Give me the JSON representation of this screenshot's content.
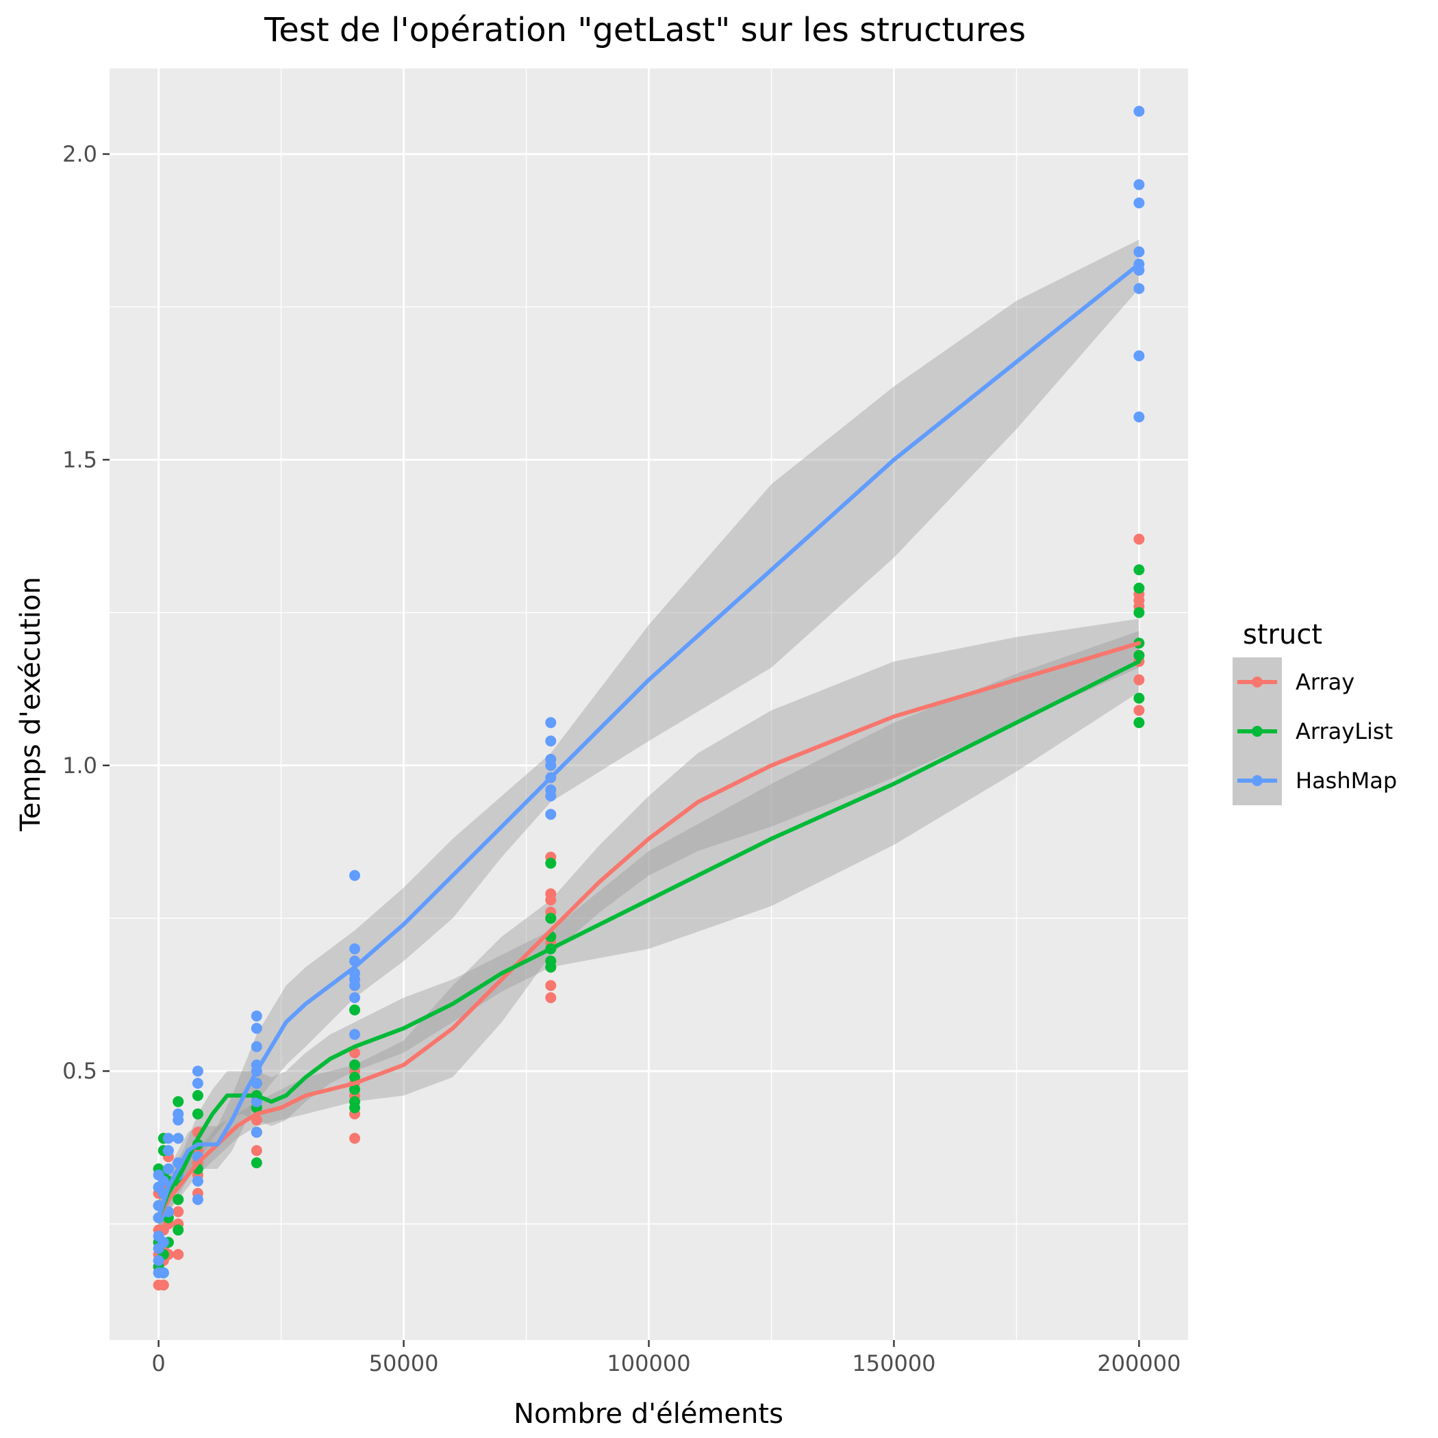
{
  "chart_data": {
    "type": "scatter",
    "title": "Test de l'opération \"getLast\" sur les structures",
    "xlabel": "Nombre d'éléments",
    "ylabel": "Temps d'exécution",
    "xlim": [
      -10000,
      210000
    ],
    "ylim": [
      0.06,
      2.14
    ],
    "x_ticks": [
      0,
      50000,
      100000,
      150000,
      200000
    ],
    "x_tick_labels": [
      "0",
      "50000",
      "100000",
      "150000",
      "200000"
    ],
    "y_ticks": [
      0.5,
      1.0,
      1.5,
      2.0
    ],
    "y_tick_labels": [
      "0.5",
      "1.0",
      "1.5",
      "2.0"
    ],
    "grid": true,
    "legend": {
      "title": "struct",
      "position": "right"
    },
    "series": [
      {
        "name": "Array",
        "color": "#F8766D",
        "points": [
          [
            0,
            0.15
          ],
          [
            0,
            0.18
          ],
          [
            0,
            0.2
          ],
          [
            0,
            0.24
          ],
          [
            0,
            0.26
          ],
          [
            0,
            0.28
          ],
          [
            0,
            0.3
          ],
          [
            1000,
            0.15
          ],
          [
            1000,
            0.19
          ],
          [
            1000,
            0.21
          ],
          [
            1000,
            0.24
          ],
          [
            1000,
            0.27
          ],
          [
            1000,
            0.31
          ],
          [
            2000,
            0.2
          ],
          [
            2000,
            0.25
          ],
          [
            2000,
            0.3
          ],
          [
            2000,
            0.36
          ],
          [
            4000,
            0.2
          ],
          [
            4000,
            0.25
          ],
          [
            4000,
            0.27
          ],
          [
            4000,
            0.29
          ],
          [
            8000,
            0.3
          ],
          [
            8000,
            0.33
          ],
          [
            8000,
            0.35
          ],
          [
            8000,
            0.37
          ],
          [
            8000,
            0.4
          ],
          [
            20000,
            0.37
          ],
          [
            20000,
            0.4
          ],
          [
            20000,
            0.42
          ],
          [
            20000,
            0.44
          ],
          [
            40000,
            0.39
          ],
          [
            40000,
            0.43
          ],
          [
            40000,
            0.46
          ],
          [
            40000,
            0.48
          ],
          [
            40000,
            0.5
          ],
          [
            40000,
            0.51
          ],
          [
            40000,
            0.53
          ],
          [
            80000,
            0.62
          ],
          [
            80000,
            0.64
          ],
          [
            80000,
            0.67
          ],
          [
            80000,
            0.71
          ],
          [
            80000,
            0.75
          ],
          [
            80000,
            0.76
          ],
          [
            80000,
            0.78
          ],
          [
            80000,
            0.79
          ],
          [
            80000,
            0.85
          ],
          [
            200000,
            1.09
          ],
          [
            200000,
            1.14
          ],
          [
            200000,
            1.17
          ],
          [
            200000,
            1.18
          ],
          [
            200000,
            1.26
          ],
          [
            200000,
            1.27
          ],
          [
            200000,
            1.28
          ],
          [
            200000,
            1.37
          ]
        ],
        "smooth": {
          "x": [
            0,
            2000,
            5000,
            8000,
            12000,
            16000,
            20000,
            25000,
            30000,
            35000,
            40000,
            50000,
            60000,
            70000,
            80000,
            90000,
            100000,
            110000,
            125000,
            150000,
            175000,
            200000
          ],
          "y": [
            0.26,
            0.29,
            0.32,
            0.35,
            0.38,
            0.41,
            0.43,
            0.44,
            0.46,
            0.47,
            0.48,
            0.51,
            0.57,
            0.65,
            0.73,
            0.81,
            0.88,
            0.94,
            1.0,
            1.08,
            1.14,
            1.2
          ],
          "lower": [
            0.23,
            0.27,
            0.3,
            0.33,
            0.36,
            0.39,
            0.41,
            0.42,
            0.43,
            0.44,
            0.45,
            0.46,
            0.49,
            0.58,
            0.69,
            0.76,
            0.82,
            0.86,
            0.9,
            0.98,
            1.07,
            1.16
          ],
          "upper": [
            0.29,
            0.32,
            0.35,
            0.37,
            0.41,
            0.43,
            0.45,
            0.47,
            0.49,
            0.5,
            0.51,
            0.55,
            0.64,
            0.72,
            0.78,
            0.87,
            0.95,
            1.02,
            1.09,
            1.17,
            1.21,
            1.24
          ]
        }
      },
      {
        "name": "ArrayList",
        "color": "#00BA38",
        "points": [
          [
            0,
            0.18
          ],
          [
            0,
            0.22
          ],
          [
            0,
            0.26
          ],
          [
            0,
            0.28
          ],
          [
            0,
            0.31
          ],
          [
            0,
            0.34
          ],
          [
            1000,
            0.17
          ],
          [
            1000,
            0.2
          ],
          [
            1000,
            0.3
          ],
          [
            1000,
            0.33
          ],
          [
            1000,
            0.37
          ],
          [
            1000,
            0.39
          ],
          [
            2000,
            0.22
          ],
          [
            2000,
            0.26
          ],
          [
            2000,
            0.32
          ],
          [
            4000,
            0.24
          ],
          [
            4000,
            0.29
          ],
          [
            4000,
            0.32
          ],
          [
            4000,
            0.45
          ],
          [
            8000,
            0.34
          ],
          [
            8000,
            0.38
          ],
          [
            8000,
            0.43
          ],
          [
            8000,
            0.46
          ],
          [
            20000,
            0.35
          ],
          [
            20000,
            0.4
          ],
          [
            20000,
            0.44
          ],
          [
            20000,
            0.46
          ],
          [
            20000,
            0.48
          ],
          [
            40000,
            0.44
          ],
          [
            40000,
            0.45
          ],
          [
            40000,
            0.47
          ],
          [
            40000,
            0.49
          ],
          [
            40000,
            0.51
          ],
          [
            40000,
            0.6
          ],
          [
            80000,
            0.67
          ],
          [
            80000,
            0.68
          ],
          [
            80000,
            0.7
          ],
          [
            80000,
            0.72
          ],
          [
            80000,
            0.75
          ],
          [
            80000,
            0.84
          ],
          [
            200000,
            1.07
          ],
          [
            200000,
            1.11
          ],
          [
            200000,
            1.18
          ],
          [
            200000,
            1.2
          ],
          [
            200000,
            1.25
          ],
          [
            200000,
            1.29
          ],
          [
            200000,
            1.32
          ]
        ],
        "smooth": {
          "x": [
            0,
            2000,
            5000,
            8000,
            11000,
            14000,
            17000,
            20000,
            23000,
            26000,
            30000,
            35000,
            40000,
            50000,
            60000,
            70000,
            80000,
            100000,
            125000,
            150000,
            175000,
            200000
          ],
          "y": [
            0.26,
            0.3,
            0.34,
            0.39,
            0.43,
            0.46,
            0.46,
            0.46,
            0.45,
            0.46,
            0.49,
            0.52,
            0.54,
            0.57,
            0.61,
            0.66,
            0.7,
            0.78,
            0.88,
            0.97,
            1.07,
            1.17
          ],
          "lower": [
            0.22,
            0.27,
            0.31,
            0.35,
            0.39,
            0.42,
            0.43,
            0.42,
            0.41,
            0.42,
            0.45,
            0.48,
            0.5,
            0.53,
            0.58,
            0.63,
            0.67,
            0.7,
            0.77,
            0.87,
            0.99,
            1.12
          ],
          "upper": [
            0.29,
            0.33,
            0.37,
            0.43,
            0.47,
            0.5,
            0.5,
            0.5,
            0.49,
            0.5,
            0.53,
            0.56,
            0.58,
            0.62,
            0.65,
            0.69,
            0.73,
            0.86,
            0.97,
            1.07,
            1.15,
            1.22
          ]
        }
      },
      {
        "name": "HashMap",
        "color": "#619CFF",
        "points": [
          [
            0,
            0.17
          ],
          [
            0,
            0.19
          ],
          [
            0,
            0.21
          ],
          [
            0,
            0.23
          ],
          [
            0,
            0.26
          ],
          [
            0,
            0.28
          ],
          [
            0,
            0.31
          ],
          [
            0,
            0.33
          ],
          [
            1000,
            0.17
          ],
          [
            1000,
            0.22
          ],
          [
            1000,
            0.27
          ],
          [
            1000,
            0.3
          ],
          [
            1000,
            0.32
          ],
          [
            2000,
            0.27
          ],
          [
            2000,
            0.3
          ],
          [
            2000,
            0.34
          ],
          [
            2000,
            0.37
          ],
          [
            2000,
            0.39
          ],
          [
            4000,
            0.33
          ],
          [
            4000,
            0.35
          ],
          [
            4000,
            0.39
          ],
          [
            4000,
            0.42
          ],
          [
            4000,
            0.43
          ],
          [
            8000,
            0.29
          ],
          [
            8000,
            0.32
          ],
          [
            8000,
            0.36
          ],
          [
            8000,
            0.48
          ],
          [
            8000,
            0.5
          ],
          [
            20000,
            0.4
          ],
          [
            20000,
            0.45
          ],
          [
            20000,
            0.48
          ],
          [
            20000,
            0.5
          ],
          [
            20000,
            0.51
          ],
          [
            20000,
            0.54
          ],
          [
            20000,
            0.57
          ],
          [
            20000,
            0.59
          ],
          [
            40000,
            0.56
          ],
          [
            40000,
            0.62
          ],
          [
            40000,
            0.64
          ],
          [
            40000,
            0.65
          ],
          [
            40000,
            0.66
          ],
          [
            40000,
            0.68
          ],
          [
            40000,
            0.7
          ],
          [
            40000,
            0.82
          ],
          [
            80000,
            0.92
          ],
          [
            80000,
            0.95
          ],
          [
            80000,
            0.96
          ],
          [
            80000,
            0.98
          ],
          [
            80000,
            1.0
          ],
          [
            80000,
            1.01
          ],
          [
            80000,
            1.04
          ],
          [
            80000,
            1.07
          ],
          [
            200000,
            1.57
          ],
          [
            200000,
            1.67
          ],
          [
            200000,
            1.78
          ],
          [
            200000,
            1.81
          ],
          [
            200000,
            1.82
          ],
          [
            200000,
            1.84
          ],
          [
            200000,
            1.92
          ],
          [
            200000,
            1.95
          ],
          [
            200000,
            2.07
          ]
        ],
        "smooth": {
          "x": [
            0,
            2000,
            4000,
            6000,
            8000,
            10000,
            12000,
            15000,
            18000,
            20000,
            23000,
            26000,
            30000,
            35000,
            40000,
            50000,
            60000,
            70000,
            80000,
            100000,
            125000,
            150000,
            175000,
            200000
          ],
          "y": [
            0.26,
            0.31,
            0.34,
            0.37,
            0.38,
            0.38,
            0.38,
            0.42,
            0.47,
            0.5,
            0.54,
            0.58,
            0.61,
            0.64,
            0.67,
            0.74,
            0.82,
            0.9,
            0.98,
            1.14,
            1.32,
            1.5,
            1.66,
            1.82
          ],
          "lower": [
            0.23,
            0.28,
            0.31,
            0.33,
            0.34,
            0.34,
            0.34,
            0.37,
            0.42,
            0.45,
            0.48,
            0.51,
            0.54,
            0.58,
            0.62,
            0.68,
            0.75,
            0.85,
            0.94,
            1.04,
            1.16,
            1.34,
            1.55,
            1.78
          ],
          "upper": [
            0.29,
            0.34,
            0.37,
            0.4,
            0.41,
            0.41,
            0.41,
            0.46,
            0.52,
            0.56,
            0.6,
            0.64,
            0.67,
            0.7,
            0.73,
            0.8,
            0.88,
            0.95,
            1.02,
            1.23,
            1.46,
            1.62,
            1.76,
            1.86
          ]
        }
      }
    ]
  }
}
